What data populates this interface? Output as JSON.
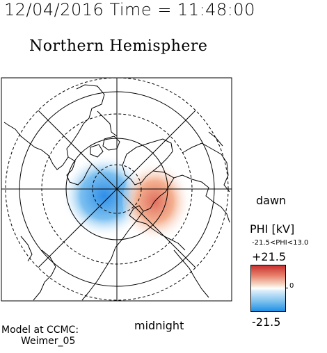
{
  "header": {
    "timestamp": "12/04/2016 Time = 11:48:00",
    "title": "Northern Hemisphere"
  },
  "map": {
    "projection": "polar",
    "hemisphere": "north",
    "label_dawn": "dawn",
    "label_midnight": "midnight"
  },
  "colorbar": {
    "title": "PHI [kV]",
    "range_text": "-21.5<PHI<13.0",
    "max_label": "+21.5",
    "min_label": "-21.5",
    "zero_label": "0",
    "colors": {
      "max": "#c8302f",
      "mid": "#ffffff",
      "min": "#1e8fe6"
    }
  },
  "model": {
    "line1": "Model at CCMC:",
    "line2": "Weimer_05"
  }
}
